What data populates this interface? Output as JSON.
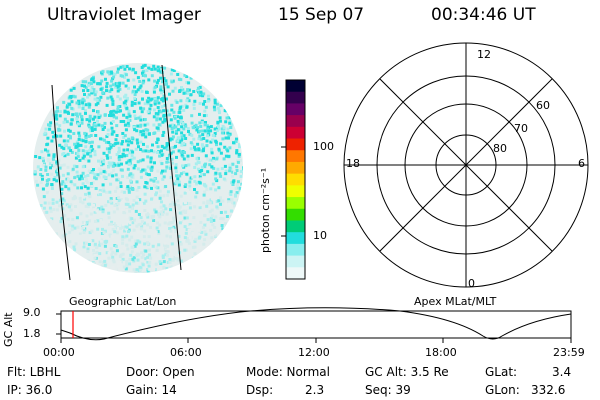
{
  "header": {
    "instrument": "Ultraviolet Imager",
    "date": "15 Sep 07",
    "time": "00:34:46 UT"
  },
  "colorbar": {
    "unit_label": "photon cm⁻²s⁻¹",
    "ticks": [
      "100",
      "10"
    ],
    "colors": [
      "#000033",
      "#33004d",
      "#660066",
      "#99004d",
      "#cc0033",
      "#ee2200",
      "#ff7700",
      "#ffaa00",
      "#ffdd00",
      "#eeff00",
      "#99ff00",
      "#33dd00",
      "#00cc77",
      "#22dddd",
      "#88eeee",
      "#ccf4f4",
      "#eef8f8"
    ]
  },
  "image_panel": {
    "caption": "Geographic Lat/Lon",
    "colors": {
      "bright": "#22dddd",
      "mid": "#66e6e6",
      "dim": "#a8eeee",
      "faint": "#d4ecec",
      "pale": "#e6eeee"
    }
  },
  "polar_panel": {
    "caption": "Apex MLat/MLT",
    "mlt_labels": {
      "top": "12",
      "right": "6",
      "bottom": "0",
      "left": "18"
    },
    "mlat_labels": [
      "60",
      "70",
      "80"
    ]
  },
  "altitude_plot": {
    "ylabel": "GC Alt",
    "yticks": [
      "9.0",
      "1.8"
    ],
    "xticks": [
      "00:00",
      "06:00",
      "12:00",
      "18:00",
      "23:59"
    ],
    "marker_color": "#ff0000",
    "marker_time": "00:34"
  },
  "info": {
    "filter": "Flt: LBHL",
    "door": "Door: Open",
    "mode": "Mode: Normal",
    "gc_alt": "GC Alt: 3.5 Re",
    "glat_label": "GLat:",
    "glat_value": "3.4",
    "ip": "IP: 36.0",
    "gain": "Gain: 14",
    "dsp_label": "Dsp:",
    "dsp_value": "2.3",
    "seq": "Seq: 39",
    "glon_label": "GLon:",
    "glon_value": "332.6"
  }
}
